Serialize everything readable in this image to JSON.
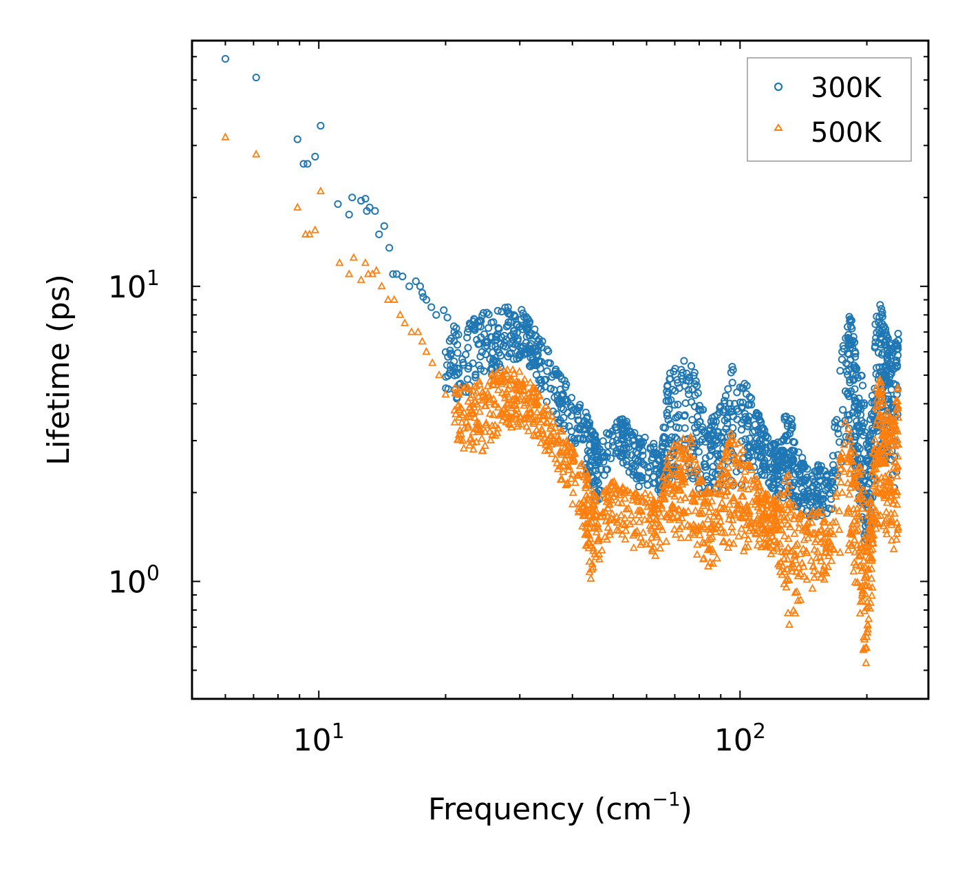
{
  "chart_data": {
    "type": "scatter",
    "xscale": "log",
    "yscale": "log",
    "xlabel": "Frequency (cm",
    "xlabel_sup": "−1",
    "xlabel_end": ")",
    "ylabel": "Lifetime (ps)",
    "xlim": [
      5,
      280
    ],
    "ylim": [
      0.4,
      68
    ],
    "xticks": [
      {
        "base": "10",
        "exp": "1",
        "value": 10
      },
      {
        "base": "10",
        "exp": "2",
        "value": 100
      }
    ],
    "yticks": [
      {
        "base": "10",
        "exp": "0",
        "value": 1
      },
      {
        "base": "10",
        "exp": "1",
        "value": 10
      }
    ],
    "legend": {
      "position": "top-right",
      "entries": [
        "300K",
        "500K"
      ]
    },
    "series": [
      {
        "name": "300K",
        "marker": "circle",
        "color": "#1f77b4",
        "x": [
          6.0,
          7.1,
          8.9,
          9.2,
          9.4,
          9.8,
          10.1,
          11.1,
          11.8,
          12.0,
          12.6,
          12.9,
          13.0,
          13.2,
          13.6,
          13.9,
          14.3,
          14.7,
          15.0,
          15.3,
          15.8,
          16.4,
          17.0,
          17.4,
          17.6,
          17.7,
          18.0,
          18.5,
          19.0,
          19.8
        ],
        "y": [
          59,
          51,
          31.5,
          26,
          26,
          27.5,
          35,
          19,
          17.5,
          20,
          19.5,
          19.8,
          18,
          18.5,
          18,
          15,
          16,
          13.5,
          11,
          11,
          10.8,
          10,
          10.4,
          10,
          9.5,
          9.2,
          9,
          8.5,
          8,
          8.3
        ]
      },
      {
        "name": "500K",
        "marker": "triangle",
        "color": "#ff7f0e",
        "x": [
          6.0,
          7.1,
          8.9,
          9.3,
          9.5,
          9.8,
          10.1,
          11.2,
          11.8,
          12.1,
          12.6,
          12.9,
          13.1,
          13.4,
          13.7,
          14.1,
          14.6,
          15.1,
          15.6,
          16.0,
          16.6,
          17.2,
          17.6,
          18.0,
          18.6,
          19.3,
          20.0,
          21.0
        ],
        "y": [
          32,
          28,
          18.5,
          15,
          15,
          15.5,
          21,
          12,
          11,
          12.5,
          10.5,
          12,
          11,
          11,
          11.3,
          10,
          9,
          9,
          8,
          7.5,
          7,
          7,
          6.5,
          6,
          5.5,
          5,
          4.3,
          3.8
        ]
      }
    ],
    "dense_bands_description": "Dense clusters of points continue from about 20 to 250 cm-1 for both series"
  }
}
